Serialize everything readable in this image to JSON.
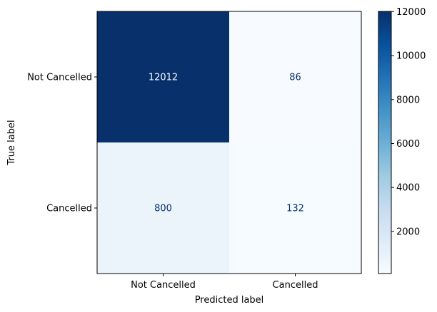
{
  "chart_data": {
    "type": "heatmap",
    "title": "",
    "xlabel": "Predicted label",
    "ylabel": "True label",
    "x_categories": [
      "Not Cancelled",
      "Cancelled"
    ],
    "y_categories": [
      "Not Cancelled",
      "Cancelled"
    ],
    "values": [
      [
        12012,
        86
      ],
      [
        800,
        132
      ]
    ],
    "colorbar": {
      "colormap": "Blues",
      "range": [
        86,
        12012
      ],
      "ticks": [
        2000,
        4000,
        6000,
        8000,
        10000,
        12000
      ]
    },
    "colors": {
      "low": "#f7fbff",
      "high": "#08306b",
      "light_text": "#f7fbff",
      "dark_text": "#08306b"
    }
  }
}
